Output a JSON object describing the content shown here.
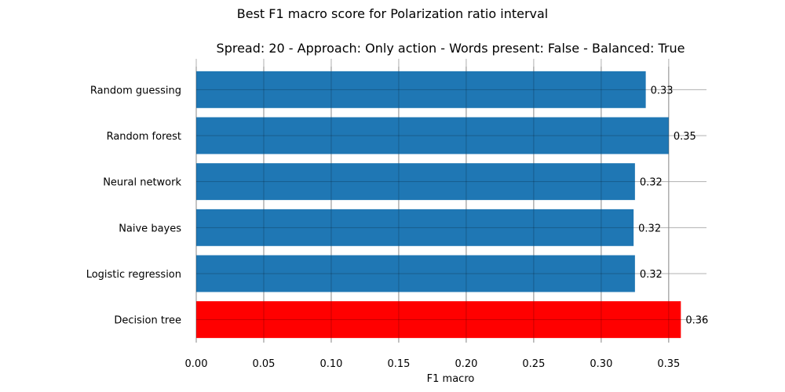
{
  "chart_data": {
    "type": "bar",
    "orientation": "horizontal",
    "suptitle": "Best F1 macro score for Polarization ratio interval",
    "title": "Spread: 20 - Approach: Only action - Words present: False - Balanced: True",
    "xlabel": "F1 macro",
    "ylabel": "",
    "categories": [
      "Random guessing",
      "Random forest",
      "Neural network",
      "Naive bayes",
      "Logistic regression",
      "Decision tree"
    ],
    "values": [
      0.333,
      0.35,
      0.325,
      0.324,
      0.325,
      0.359
    ],
    "data_labels": [
      "0.33",
      "0.35",
      "0.32",
      "0.32",
      "0.32",
      "0.36"
    ],
    "highlight_category": "Decision tree",
    "xlim": [
      0,
      0.378
    ],
    "xticks": [
      "0.00",
      "0.05",
      "0.10",
      "0.15",
      "0.20",
      "0.25",
      "0.30",
      "0.35"
    ],
    "xtick_values": [
      0,
      0.05,
      0.1,
      0.15,
      0.2,
      0.25,
      0.3,
      0.35
    ],
    "grid": true,
    "colors": {
      "default_bar": "#1f77b4",
      "highlight_bar": "#ff0000",
      "grid": "#b0b0b0"
    }
  }
}
